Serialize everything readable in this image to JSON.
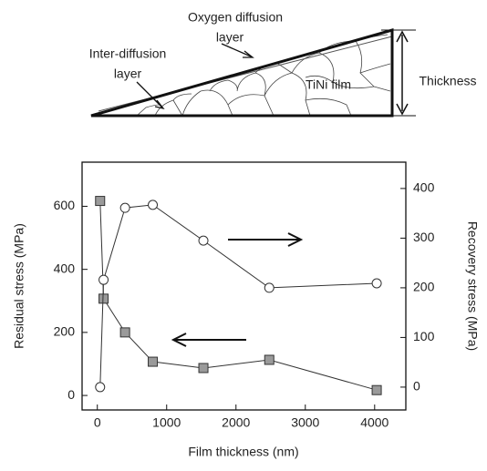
{
  "diagram": {
    "oxygen_label": [
      "Oxygen diffusion",
      "layer"
    ],
    "inter_label": [
      "Inter-diffusion",
      "layer"
    ],
    "film_label": "TiNi film",
    "thickness_label": "Thickness"
  },
  "chart_data": {
    "type": "line",
    "x_label": "Film thickness (nm)",
    "y_label": "Residual stress (MPa)",
    "y2_label": "Recovery stress (MPa)",
    "xlim": [
      -220,
      4450
    ],
    "xticks": [
      0,
      1000,
      2000,
      3000,
      4000
    ],
    "ylim": [
      -46,
      740
    ],
    "yticks": [
      0,
      200,
      400,
      600
    ],
    "y2lim": [
      -46,
      453
    ],
    "y2ticks": [
      0,
      100,
      200,
      300,
      400
    ],
    "grid": false,
    "series": [
      {
        "color": "#9a9a9a",
        "marker": "square",
        "axis": "y",
        "x": [
          40,
          90,
          400,
          800,
          1530,
          2480,
          4030
        ],
        "values": [
          617,
          307,
          200,
          107,
          87,
          113,
          17
        ]
      },
      {
        "color": "#ffffff",
        "marker": "circle",
        "axis": "y2",
        "x": [
          40,
          90,
          400,
          800,
          1530,
          2480,
          4030
        ],
        "values": [
          0,
          216,
          361,
          367,
          295,
          200,
          209
        ]
      }
    ]
  }
}
